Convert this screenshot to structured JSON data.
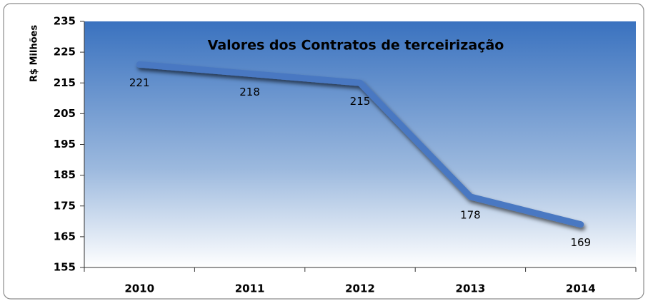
{
  "chart_data": {
    "type": "line",
    "title": "Valores dos Contratos de terceirização",
    "ylabel": "R$ Milhões",
    "categories": [
      "2010",
      "2011",
      "2012",
      "2013",
      "2014"
    ],
    "series": [
      {
        "name": "Valores",
        "color": "#4a78c2",
        "values": [
          221,
          218,
          215,
          178,
          169
        ]
      }
    ],
    "ylim": [
      155,
      235
    ],
    "yticks": [
      155,
      165,
      175,
      185,
      195,
      205,
      215,
      225,
      235
    ]
  }
}
